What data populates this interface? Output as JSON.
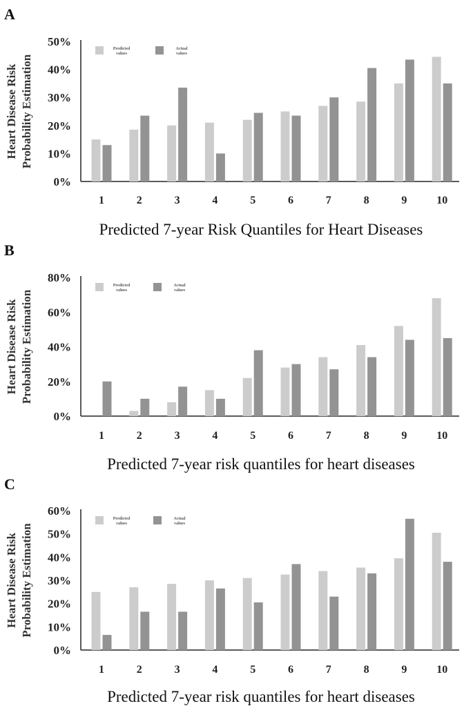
{
  "colors": {
    "predicted": "#cccccc",
    "actual": "#939393",
    "axis": "#222222"
  },
  "chart_data": [
    {
      "panel": "A",
      "type": "bar",
      "categories": [
        "1",
        "2",
        "3",
        "4",
        "5",
        "6",
        "7",
        "8",
        "9",
        "10"
      ],
      "series": [
        {
          "name": "Predicted values",
          "legend_lines": [
            "Predicted",
            "values"
          ],
          "values": [
            15,
            18.5,
            20,
            21,
            22,
            25,
            27,
            28.5,
            35,
            44.5
          ]
        },
        {
          "name": "Actual values",
          "legend_lines": [
            "Actual",
            "values"
          ],
          "values": [
            13,
            23.5,
            33.5,
            10,
            24.5,
            23.5,
            30,
            40.5,
            43.5,
            35
          ]
        }
      ],
      "yticks": [
        "0%",
        "10%",
        "20%",
        "30%",
        "40%",
        "50%"
      ],
      "ylim": [
        0,
        50
      ],
      "ylabel_lines": [
        "Heart Disease Risk",
        "Probability Estimation"
      ],
      "xlabel": "Predicted 7-year Risk Quantiles for Heart Diseases"
    },
    {
      "panel": "B",
      "type": "bar",
      "categories": [
        "1",
        "2",
        "3",
        "4",
        "5",
        "6",
        "7",
        "8",
        "9",
        "10"
      ],
      "series": [
        {
          "name": "Predicted values",
          "legend_lines": [
            "Predicted",
            "values"
          ],
          "values": [
            0,
            3,
            8,
            15,
            22,
            28,
            34,
            41,
            52,
            68
          ]
        },
        {
          "name": "Actual values",
          "legend_lines": [
            "Actual",
            "values"
          ],
          "values": [
            20,
            10,
            17,
            10,
            38,
            30,
            27,
            34,
            44,
            45
          ]
        }
      ],
      "yticks": [
        "0%",
        "20%",
        "40%",
        "60%",
        "80%"
      ],
      "ylim": [
        0,
        80
      ],
      "ylabel_lines": [
        "Heart Disease Risk",
        "Probability Estimation"
      ],
      "xlabel": "Predicted 7-year risk quantiles for heart diseases"
    },
    {
      "panel": "C",
      "type": "bar",
      "categories": [
        "1",
        "2",
        "3",
        "4",
        "5",
        "6",
        "7",
        "8",
        "9",
        "10"
      ],
      "series": [
        {
          "name": "Predicted values",
          "legend_lines": [
            "Predicted",
            "values"
          ],
          "values": [
            25,
            27,
            28.5,
            30,
            31,
            32.5,
            34,
            35.5,
            39.5,
            50.5
          ]
        },
        {
          "name": "Actual values",
          "legend_lines": [
            "Actual",
            "values"
          ],
          "values": [
            6.5,
            16.5,
            16.5,
            26.5,
            20.5,
            37,
            23,
            33,
            56.5,
            38
          ]
        }
      ],
      "yticks": [
        "0%",
        "10%",
        "20%",
        "30%",
        "40%",
        "50%",
        "60%"
      ],
      "ylim": [
        0,
        60
      ],
      "ylabel_lines": [
        "Heart Disease Risk",
        "Probability Estimation"
      ],
      "xlabel": "Predicted 7-year risk quantiles for heart diseases"
    }
  ]
}
